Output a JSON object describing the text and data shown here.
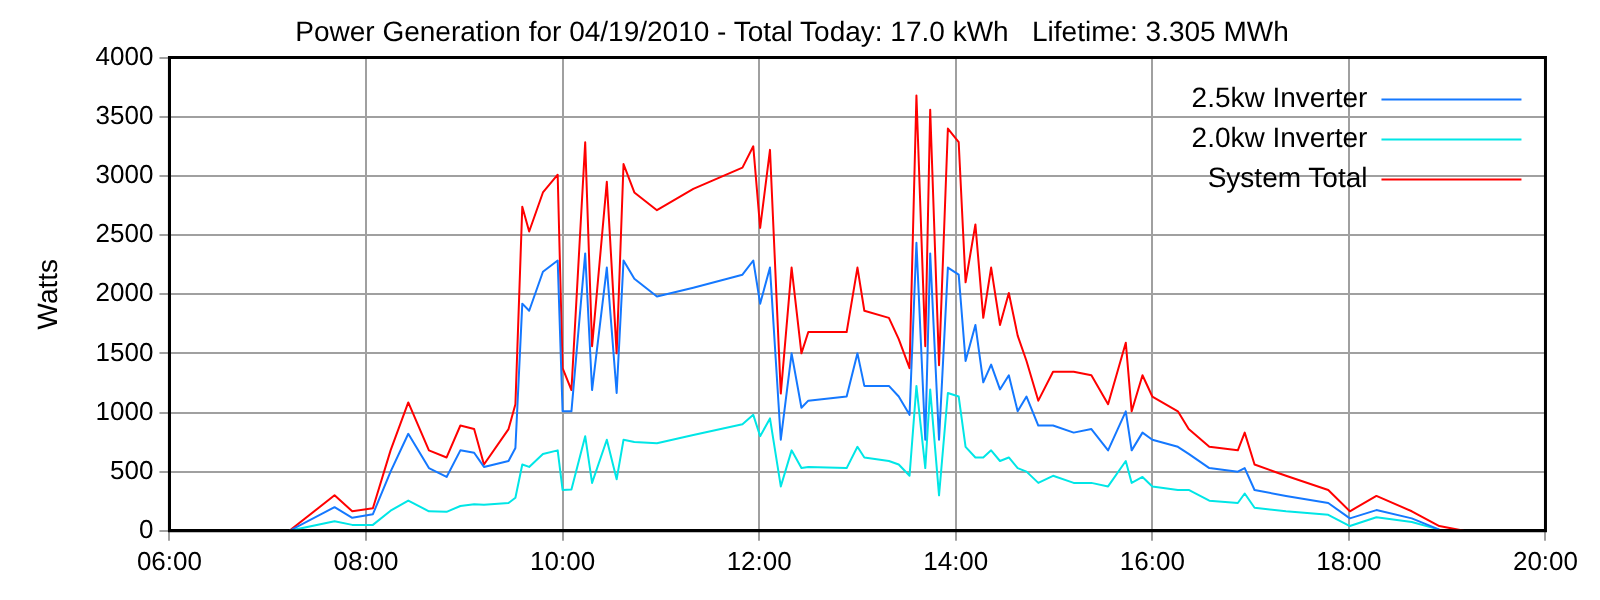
{
  "chart_data": {
    "type": "line",
    "title": "Power Generation for 04/19/2010 - Total Today: 17.0 kWh   Lifetime: 3.305 MWh",
    "ylabel": "Watts",
    "x": [
      7.22,
      7.68,
      7.86,
      8.07,
      8.25,
      8.43,
      8.64,
      8.82,
      8.96,
      9.1,
      9.2,
      9.45,
      9.52,
      9.59,
      9.66,
      9.8,
      9.95,
      10,
      10.09,
      10.23,
      10.3,
      10.45,
      10.55,
      10.62,
      10.73,
      10.96,
      11.33,
      11.83,
      11.94,
      12.01,
      12.11,
      12.22,
      12.33,
      12.43,
      12.5,
      12.89,
      13,
      13.07,
      13.32,
      13.42,
      13.53,
      13.6,
      13.69,
      13.74,
      13.83,
      13.92,
      14.03,
      14.1,
      14.2,
      14.28,
      14.36,
      14.45,
      14.54,
      14.63,
      14.72,
      14.84,
      14.99,
      15.2,
      15.38,
      15.55,
      15.73,
      15.79,
      15.9,
      16,
      16.26,
      16.37,
      16.58,
      16.87,
      16.94,
      17.04,
      17.36,
      17.79,
      18.01,
      18.28,
      18.64,
      18.92,
      19.17
    ],
    "series": [
      {
        "name": "2.5kw Inverter",
        "color": "#1478ff",
        "values": [
          0,
          200,
          110,
          140,
          500,
          820,
          530,
          455,
          680,
          660,
          540,
          590,
          700,
          1920,
          1860,
          2190,
          2285,
          1010,
          1010,
          2345,
          1190,
          2225,
          1165,
          2285,
          2130,
          1980,
          2055,
          2165,
          2285,
          1920,
          2225,
          770,
          1500,
          1040,
          1100,
          1135,
          1500,
          1225,
          1225,
          1135,
          980,
          2435,
          770,
          2345,
          770,
          2225,
          2165,
          1435,
          1740,
          1255,
          1405,
          1195,
          1315,
          1010,
          1135,
          890,
          890,
          830,
          860,
          680,
          1010,
          680,
          830,
          770,
          710,
          650,
          530,
          500,
          530,
          345,
          295,
          235,
          105,
          175,
          105,
          10,
          null
        ]
      },
      {
        "name": "2.0kw Inverter",
        "color": "#00e6e6",
        "values": [
          0,
          80,
          50,
          50,
          170,
          255,
          165,
          160,
          210,
          225,
          220,
          235,
          280,
          560,
          540,
          650,
          680,
          345,
          350,
          800,
          405,
          770,
          435,
          770,
          750,
          740,
          810,
          900,
          980,
          800,
          950,
          375,
          680,
          530,
          540,
          530,
          710,
          620,
          590,
          560,
          465,
          1225,
          530,
          1195,
          300,
          1165,
          1135,
          710,
          620,
          620,
          680,
          590,
          620,
          530,
          500,
          405,
          465,
          405,
          405,
          375,
          590,
          405,
          455,
          375,
          345,
          345,
          255,
          235,
          315,
          195,
          165,
          135,
          40,
          115,
          75,
          10,
          null
        ]
      },
      {
        "name": "System Total",
        "color": "#ff0000",
        "values": [
          0,
          300,
          165,
          190,
          680,
          1085,
          680,
          620,
          890,
          860,
          560,
          860,
          1070,
          2740,
          2530,
          2860,
          3010,
          1375,
          1190,
          3285,
          1560,
          2950,
          1500,
          3100,
          2860,
          2710,
          2890,
          3070,
          3250,
          2560,
          3220,
          1160,
          2225,
          1500,
          1680,
          1680,
          2225,
          1860,
          1800,
          1620,
          1375,
          3680,
          1560,
          3560,
          1400,
          3400,
          3285,
          2100,
          2590,
          1800,
          2225,
          1740,
          2010,
          1650,
          1435,
          1100,
          1345,
          1345,
          1315,
          1070,
          1590,
          1010,
          1315,
          1135,
          1010,
          860,
          710,
          680,
          830,
          560,
          465,
          345,
          165,
          295,
          165,
          40,
          0
        ]
      }
    ],
    "xlim": [
      6,
      20
    ],
    "xticks": [
      {
        "value": 6,
        "label": "06:00"
      },
      {
        "value": 8,
        "label": "08:00"
      },
      {
        "value": 10,
        "label": "10:00"
      },
      {
        "value": 12,
        "label": "12:00"
      },
      {
        "value": 14,
        "label": "14:00"
      },
      {
        "value": 16,
        "label": "16:00"
      },
      {
        "value": 18,
        "label": "18:00"
      },
      {
        "value": 20,
        "label": "20:00"
      }
    ],
    "ylim": [
      0,
      4000
    ],
    "yticks": [
      0,
      500,
      1000,
      1500,
      2000,
      2500,
      3000,
      3500,
      4000
    ],
    "grid": true,
    "legend": "top right",
    "marker": "none",
    "line_style": "solid"
  }
}
